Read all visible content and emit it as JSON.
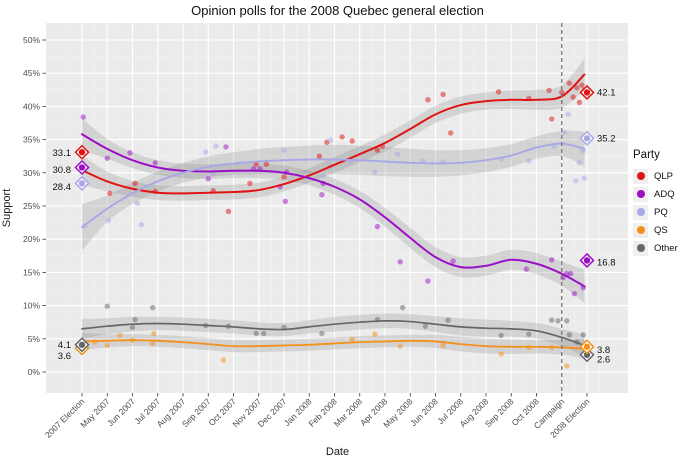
{
  "title": "Opinion polls for the 2008 Quebec general election",
  "axes": {
    "x_label": "Date",
    "y_label": "Support",
    "y_ticks": [
      {
        "label": "0%",
        "value": 0
      },
      {
        "label": "5%",
        "value": 5
      },
      {
        "label": "10%",
        "value": 10
      },
      {
        "label": "15%",
        "value": 15
      },
      {
        "label": "20%",
        "value": 20
      },
      {
        "label": "25%",
        "value": 25
      },
      {
        "label": "30%",
        "value": 30
      },
      {
        "label": "35%",
        "value": 35
      },
      {
        "label": "40%",
        "value": 40
      },
      {
        "label": "45%",
        "value": 45
      },
      {
        "label": "50%",
        "value": 50
      }
    ]
  },
  "legend": {
    "title": "Party",
    "items": [
      {
        "label": "QLP",
        "color": "#e01414"
      },
      {
        "label": "ADQ",
        "color": "#9b0fc7"
      },
      {
        "label": "PQ",
        "color": "#a8a8e8"
      },
      {
        "label": "QS",
        "color": "#f39019"
      },
      {
        "label": "Other",
        "color": "#666666"
      }
    ]
  },
  "chart_data": {
    "type": "scatter",
    "note": "poll scatter points with loess trend lines, confidence ribbons and election-result diamonds",
    "x_categories": [
      "2007 Election",
      "May 2007",
      "Jun 2007",
      "Jul 2007",
      "Aug 2007",
      "Sep 2007",
      "Oct 2007",
      "Nov 2007",
      "Dec 2007",
      "Jan 2008",
      "Feb 2008",
      "Mar 2008",
      "Apr 2008",
      "May 2008",
      "Jun 2008",
      "Jul 2008",
      "Aug 2008",
      "Sep 2008",
      "Oct 2008",
      "Campaign",
      "2008 Election"
    ],
    "ylim": [
      0,
      50
    ],
    "campaign_line_index": 19,
    "grid": true,
    "legend_position": "right",
    "panel_bg": "#ebebeb",
    "ribbon_color": "rgba(125,125,125,0.22)",
    "series": [
      {
        "name": "QLP",
        "color": "#e01414",
        "line_width": 2.0,
        "trend": [
          [
            0,
            30.4,
            2.2
          ],
          [
            1,
            28.7,
            1.5
          ],
          [
            2,
            27.6,
            1.2
          ],
          [
            3,
            27.0,
            1.1
          ],
          [
            4,
            26.9,
            1.1
          ],
          [
            5,
            27.0,
            1.1
          ],
          [
            6,
            27.1,
            1.1
          ],
          [
            7,
            27.4,
            1.1
          ],
          [
            8,
            28.3,
            1.1
          ],
          [
            9,
            29.6,
            1.1
          ],
          [
            10,
            31.2,
            1.2
          ],
          [
            11,
            32.8,
            1.2
          ],
          [
            12,
            34.5,
            1.3
          ],
          [
            13,
            36.6,
            1.3
          ],
          [
            14,
            38.8,
            1.3
          ],
          [
            15,
            40.2,
            1.3
          ],
          [
            16,
            40.8,
            1.3
          ],
          [
            17,
            41.0,
            1.4
          ],
          [
            18,
            41.0,
            1.5
          ],
          [
            19,
            41.5,
            1.7
          ],
          [
            19.9,
            44.8,
            2.4
          ]
        ],
        "points": [
          [
            1.1,
            26.9
          ],
          [
            2.1,
            28.4
          ],
          [
            2.9,
            27.2
          ],
          [
            5.2,
            27.3
          ],
          [
            5.8,
            24.2
          ],
          [
            6.65,
            28.4
          ],
          [
            6.9,
            31.3
          ],
          [
            7.3,
            31.3
          ],
          [
            8.0,
            29.4
          ],
          [
            9.4,
            32.5
          ],
          [
            9.7,
            34.6
          ],
          [
            10.3,
            35.4
          ],
          [
            10.7,
            34.8
          ],
          [
            11.7,
            33.4
          ],
          [
            11.9,
            34.0
          ],
          [
            13.7,
            41.0
          ],
          [
            14.3,
            41.8
          ],
          [
            14.6,
            36.0
          ],
          [
            16.5,
            42.2
          ],
          [
            17.7,
            41.2
          ],
          [
            18.5,
            42.4
          ],
          [
            18.6,
            38.1
          ],
          [
            19.0,
            42.1
          ],
          [
            19.3,
            43.5
          ],
          [
            19.45,
            41.4
          ],
          [
            19.6,
            42.8
          ],
          [
            19.7,
            40.6
          ],
          [
            19.8,
            43.2
          ],
          [
            19.9,
            42.5
          ]
        ]
      },
      {
        "name": "ADQ",
        "color": "#9b0fc7",
        "line_width": 2.0,
        "trend": [
          [
            0,
            35.8,
            2.4
          ],
          [
            1,
            33.6,
            1.5
          ],
          [
            2,
            31.9,
            1.2
          ],
          [
            3,
            30.8,
            1.1
          ],
          [
            4,
            30.3,
            1.1
          ],
          [
            5,
            30.2,
            1.1
          ],
          [
            6,
            30.3,
            1.1
          ],
          [
            7,
            30.3,
            1.1
          ],
          [
            8,
            30.0,
            1.1
          ],
          [
            9,
            29.2,
            1.1
          ],
          [
            10,
            27.9,
            1.2
          ],
          [
            11,
            26.0,
            1.3
          ],
          [
            12,
            23.3,
            1.4
          ],
          [
            13,
            20.2,
            1.5
          ],
          [
            14,
            17.3,
            1.5
          ],
          [
            15,
            15.8,
            1.5
          ],
          [
            16,
            16.0,
            1.5
          ],
          [
            17,
            16.9,
            1.5
          ],
          [
            18,
            16.3,
            1.6
          ],
          [
            19,
            14.8,
            1.8
          ],
          [
            19.9,
            12.9,
            2.5
          ]
        ],
        "points": [
          [
            0.05,
            38.4
          ],
          [
            1.0,
            32.2
          ],
          [
            1.9,
            33.0
          ],
          [
            2.9,
            31.5
          ],
          [
            5.0,
            29.1
          ],
          [
            5.7,
            33.9
          ],
          [
            6.8,
            30.6
          ],
          [
            7.05,
            30.6
          ],
          [
            7.85,
            27.9
          ],
          [
            8.05,
            25.7
          ],
          [
            8.1,
            30.1
          ],
          [
            9.5,
            26.7
          ],
          [
            9.55,
            28.4
          ],
          [
            11.7,
            21.9
          ],
          [
            12.6,
            16.6
          ],
          [
            13.7,
            13.7
          ],
          [
            14.7,
            16.7
          ],
          [
            17.6,
            15.5
          ],
          [
            18.6,
            16.9
          ],
          [
            19.05,
            14.2
          ],
          [
            19.2,
            14.8
          ],
          [
            19.35,
            14.8
          ],
          [
            19.5,
            11.8
          ],
          [
            19.85,
            12.7
          ]
        ]
      },
      {
        "name": "PQ",
        "color": "#a8a8e8",
        "line_width": 1.9,
        "trend": [
          [
            0,
            21.8,
            3.5
          ],
          [
            1,
            24.6,
            2.0
          ],
          [
            2,
            26.9,
            1.6
          ],
          [
            3,
            28.7,
            1.5
          ],
          [
            4,
            30.0,
            1.5
          ],
          [
            5,
            30.9,
            1.6
          ],
          [
            6,
            31.4,
            1.7
          ],
          [
            7,
            31.7,
            1.9
          ],
          [
            8,
            31.9,
            2.0
          ],
          [
            9,
            32.0,
            2.1
          ],
          [
            10,
            32.0,
            2.2
          ],
          [
            11,
            31.9,
            2.2
          ],
          [
            12,
            31.7,
            2.2
          ],
          [
            13,
            31.5,
            2.1
          ],
          [
            14,
            31.4,
            2.0
          ],
          [
            15,
            31.5,
            1.9
          ],
          [
            16,
            31.9,
            1.8
          ],
          [
            17,
            32.6,
            1.7
          ],
          [
            18,
            33.8,
            1.7
          ],
          [
            19,
            34.4,
            1.9
          ],
          [
            19.9,
            33.6,
            2.6
          ]
        ],
        "points": [
          [
            0.1,
            22.0
          ],
          [
            1.05,
            22.8
          ],
          [
            2.2,
            25.4
          ],
          [
            2.35,
            22.2
          ],
          [
            4.9,
            33.1
          ],
          [
            5.2,
            29.9
          ],
          [
            5.3,
            34.0
          ],
          [
            8.0,
            33.4
          ],
          [
            9.55,
            29.6
          ],
          [
            9.8,
            30.9
          ],
          [
            9.85,
            34.9
          ],
          [
            10.6,
            31.8
          ],
          [
            11.6,
            30.1
          ],
          [
            12.5,
            32.8
          ],
          [
            13.5,
            31.8
          ],
          [
            14.3,
            31.6
          ],
          [
            16.6,
            32.1
          ],
          [
            17.7,
            31.8
          ],
          [
            18.7,
            34.0
          ],
          [
            19.1,
            36.1
          ],
          [
            19.25,
            38.8
          ],
          [
            19.55,
            28.8
          ],
          [
            19.7,
            31.5
          ],
          [
            19.85,
            33.3
          ],
          [
            19.9,
            29.2
          ]
        ]
      },
      {
        "name": "QS",
        "color": "#f39019",
        "line_width": 1.8,
        "trend": [
          [
            0,
            4.6,
            1.3
          ],
          [
            1,
            4.7,
            1.0
          ],
          [
            2,
            4.8,
            0.9
          ],
          [
            3,
            4.7,
            0.9
          ],
          [
            4,
            4.5,
            0.9
          ],
          [
            5,
            4.2,
            0.9
          ],
          [
            6,
            3.9,
            0.9
          ],
          [
            7,
            3.9,
            0.9
          ],
          [
            8,
            4.0,
            0.9
          ],
          [
            9,
            4.1,
            0.9
          ],
          [
            10,
            4.3,
            0.9
          ],
          [
            11,
            4.5,
            0.9
          ],
          [
            12,
            4.6,
            0.9
          ],
          [
            13,
            4.7,
            0.9
          ],
          [
            14,
            4.6,
            1.0
          ],
          [
            15,
            4.2,
            1.1
          ],
          [
            16,
            3.9,
            1.1
          ],
          [
            17,
            3.8,
            1.1
          ],
          [
            18,
            3.8,
            1.0
          ],
          [
            19,
            3.7,
            1.1
          ],
          [
            19.9,
            3.5,
            1.5
          ]
        ],
        "points": [
          [
            0.5,
            4.5
          ],
          [
            1.0,
            4.0
          ],
          [
            1.5,
            5.5
          ],
          [
            2.0,
            4.8
          ],
          [
            2.8,
            4.3
          ],
          [
            2.85,
            5.8
          ],
          [
            5.6,
            1.8
          ],
          [
            10.7,
            4.9
          ],
          [
            11.6,
            5.7
          ],
          [
            12.6,
            3.9
          ],
          [
            14.3,
            4.0
          ],
          [
            16.6,
            2.7
          ],
          [
            17.7,
            3.7
          ],
          [
            18.6,
            3.7
          ],
          [
            19.2,
            0.9
          ],
          [
            19.9,
            3.7
          ]
        ]
      },
      {
        "name": "Other",
        "color": "#666666",
        "line_width": 1.7,
        "trend": [
          [
            0,
            6.5,
            1.5
          ],
          [
            1,
            6.9,
            1.2
          ],
          [
            2,
            7.2,
            1.1
          ],
          [
            3,
            7.3,
            1.0
          ],
          [
            4,
            7.2,
            1.0
          ],
          [
            5,
            7.0,
            1.0
          ],
          [
            6,
            6.8,
            1.0
          ],
          [
            7,
            6.5,
            1.0
          ],
          [
            8,
            6.4,
            1.0
          ],
          [
            9,
            6.8,
            1.0
          ],
          [
            10,
            7.2,
            1.1
          ],
          [
            11,
            7.5,
            1.1
          ],
          [
            12,
            7.7,
            1.1
          ],
          [
            13,
            7.6,
            1.1
          ],
          [
            14,
            7.2,
            1.2
          ],
          [
            15,
            6.8,
            1.3
          ],
          [
            16,
            6.6,
            1.3
          ],
          [
            17,
            6.5,
            1.2
          ],
          [
            18,
            6.2,
            1.2
          ],
          [
            19,
            5.2,
            1.3
          ],
          [
            19.9,
            4.0,
            1.7
          ]
        ],
        "points": [
          [
            1.0,
            9.9
          ],
          [
            2.0,
            6.7
          ],
          [
            2.1,
            7.9
          ],
          [
            2.8,
            9.7
          ],
          [
            4.9,
            7.0
          ],
          [
            5.8,
            6.9
          ],
          [
            6.9,
            5.8
          ],
          [
            7.2,
            5.8
          ],
          [
            8.0,
            6.7
          ],
          [
            9.5,
            5.8
          ],
          [
            11.7,
            7.9
          ],
          [
            12.7,
            9.7
          ],
          [
            13.6,
            6.9
          ],
          [
            14.5,
            7.8
          ],
          [
            16.6,
            5.5
          ],
          [
            17.7,
            5.7
          ],
          [
            18.6,
            7.8
          ],
          [
            18.85,
            7.7
          ],
          [
            19.2,
            7.7
          ],
          [
            19.3,
            5.6
          ],
          [
            19.6,
            4.5
          ],
          [
            19.85,
            5.6
          ]
        ]
      }
    ],
    "elections": [
      {
        "label": "2007 Election",
        "index": 0,
        "side": "left",
        "results": [
          {
            "party": "QLP",
            "value": 33.1,
            "label": "33.1",
            "dy": 1
          },
          {
            "party": "ADQ",
            "value": 30.8,
            "label": "30.8",
            "dy": 2.5
          },
          {
            "party": "PQ",
            "value": 28.4,
            "label": "28.4",
            "dy": 3.5
          },
          {
            "party": "QS",
            "value": 3.6,
            "label": "3.6",
            "dy": 8
          },
          {
            "party": "Other",
            "value": 4.1,
            "label": "4.1",
            "dy": 0
          }
        ]
      },
      {
        "label": "2008 Election",
        "index": 20,
        "side": "right",
        "results": [
          {
            "party": "QLP",
            "value": 42.1,
            "label": "42.1",
            "dy": 0
          },
          {
            "party": "PQ",
            "value": 35.2,
            "label": "35.2",
            "dy": 0
          },
          {
            "party": "ADQ",
            "value": 16.8,
            "label": "16.8",
            "dy": 2
          },
          {
            "party": "Other",
            "value": 2.6,
            "label": "2.6",
            "dy": 5
          },
          {
            "party": "QS",
            "value": 3.8,
            "label": "3.8",
            "dy": 3
          }
        ]
      }
    ]
  }
}
